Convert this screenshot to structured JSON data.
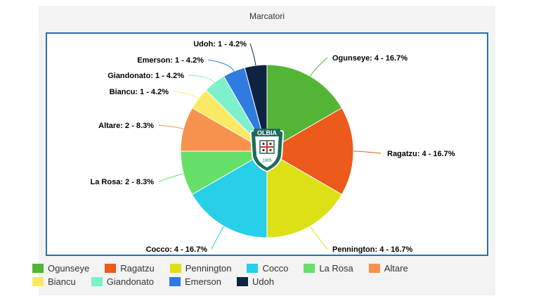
{
  "chart_title": "Marcatori",
  "chart_data": {
    "type": "pie",
    "title": "Marcatori",
    "categories": [
      "Ogunseye",
      "Ragatzu",
      "Pennington",
      "Cocco",
      "La Rosa",
      "Altare",
      "Biancu",
      "Giandonato",
      "Emerson",
      "Udoh"
    ],
    "values": [
      4,
      4,
      4,
      4,
      2,
      2,
      1,
      1,
      1,
      1
    ],
    "percentages": [
      16.7,
      16.7,
      16.7,
      16.7,
      8.3,
      8.3,
      4.2,
      4.2,
      4.2,
      4.2
    ],
    "colors": [
      "#53b535",
      "#ec5a1c",
      "#dce015",
      "#27cfe8",
      "#67e06a",
      "#f7924e",
      "#faea63",
      "#7ef0cb",
      "#2f7be0",
      "#0d2341"
    ],
    "labels": [
      "Ogunseye: 4 - 16.7%",
      "Ragatzu: 4 - 16.7%",
      "Pennington: 4 - 16.7%",
      "Cocco: 4 - 16.7%",
      "La Rosa: 2 - 8.3%",
      "Altare: 2 - 8.3%",
      "Biancu: 1 - 4.2%",
      "Giandonato: 1 - 4.2%",
      "Emerson: 1 - 4.2%",
      "Udoh: 1 - 4.2%"
    ],
    "legend_position": "bottom"
  },
  "logo": {
    "text": "OLBIA",
    "year": "1905",
    "icon": "olbia-crest-icon"
  }
}
